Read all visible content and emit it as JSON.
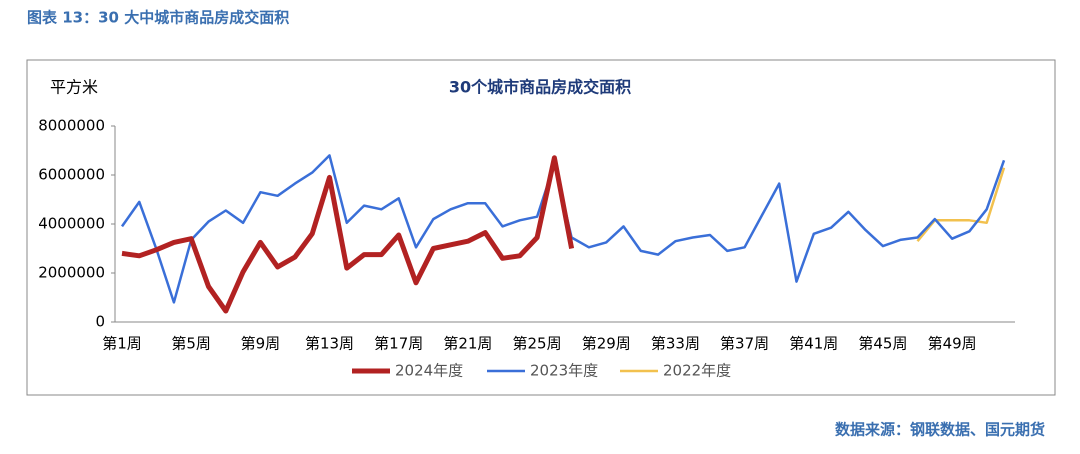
{
  "header": {
    "title": "图表 13：30 大中城市商品房成交面积"
  },
  "chart_data": {
    "type": "line",
    "title": "30个城市商品房成交面积",
    "y_label": "平方米",
    "categories": [
      "第1周",
      null,
      null,
      null,
      "第5周",
      null,
      null,
      null,
      "第9周",
      null,
      null,
      null,
      "第13周",
      null,
      null,
      null,
      "第17周",
      null,
      null,
      null,
      "第21周",
      null,
      null,
      null,
      "第25周",
      null,
      null,
      null,
      "第29周",
      null,
      null,
      null,
      "第33周",
      null,
      null,
      null,
      "第37周",
      null,
      null,
      null,
      "第41周",
      null,
      null,
      null,
      "第45周",
      null,
      null,
      null,
      "第49周",
      null,
      null,
      null
    ],
    "series": [
      {
        "name": "2024年度",
        "color": "#b22222",
        "width": 5,
        "values": [
          2800000,
          2700000,
          2950000,
          3250000,
          3400000,
          1450000,
          450000,
          2050000,
          3250000,
          2250000,
          2650000,
          3600000,
          5900000,
          2200000,
          2750000,
          2750000,
          3550000,
          1600000,
          3000000,
          3150000,
          3300000,
          3650000,
          2600000,
          2700000,
          3450000,
          6700000,
          3000000,
          null,
          null,
          null,
          null,
          null,
          null,
          null,
          null,
          null,
          null,
          null,
          null,
          null,
          null,
          null,
          null,
          null,
          null,
          null,
          null,
          null,
          null,
          null,
          null,
          null
        ]
      },
      {
        "name": "2023年度",
        "color": "#3a6fd8",
        "width": 2.5,
        "values": [
          3900000,
          4900000,
          2950000,
          800000,
          3350000,
          4100000,
          4550000,
          4050000,
          5300000,
          5150000,
          5650000,
          6100000,
          6800000,
          4050000,
          4750000,
          4600000,
          5050000,
          3050000,
          4200000,
          4600000,
          4850000,
          4850000,
          3900000,
          4150000,
          4300000,
          6450000,
          3450000,
          3050000,
          3250000,
          3900000,
          2900000,
          2750000,
          3300000,
          3450000,
          3550000,
          2900000,
          3050000,
          4350000,
          5650000,
          1650000,
          3600000,
          3850000,
          4500000,
          3750000,
          3100000,
          3350000,
          3450000,
          4200000,
          3400000,
          3700000,
          4600000,
          6600000
        ]
      },
      {
        "name": "2022年度",
        "color": "#f2c14e",
        "width": 2.5,
        "values": [
          null,
          null,
          null,
          null,
          null,
          null,
          null,
          null,
          null,
          null,
          null,
          null,
          null,
          null,
          null,
          null,
          null,
          null,
          null,
          null,
          null,
          null,
          null,
          null,
          null,
          null,
          null,
          null,
          null,
          null,
          null,
          null,
          null,
          null,
          null,
          null,
          null,
          null,
          null,
          null,
          null,
          null,
          null,
          null,
          null,
          null,
          3300000,
          4150000,
          4150000,
          4150000,
          4050000,
          6300000
        ]
      }
    ],
    "ylim": [
      0,
      8000000
    ],
    "yticks": [
      0,
      2000000,
      4000000,
      6000000,
      8000000
    ]
  },
  "footer": {
    "source": "数据来源：钢联数据、国元期货"
  }
}
